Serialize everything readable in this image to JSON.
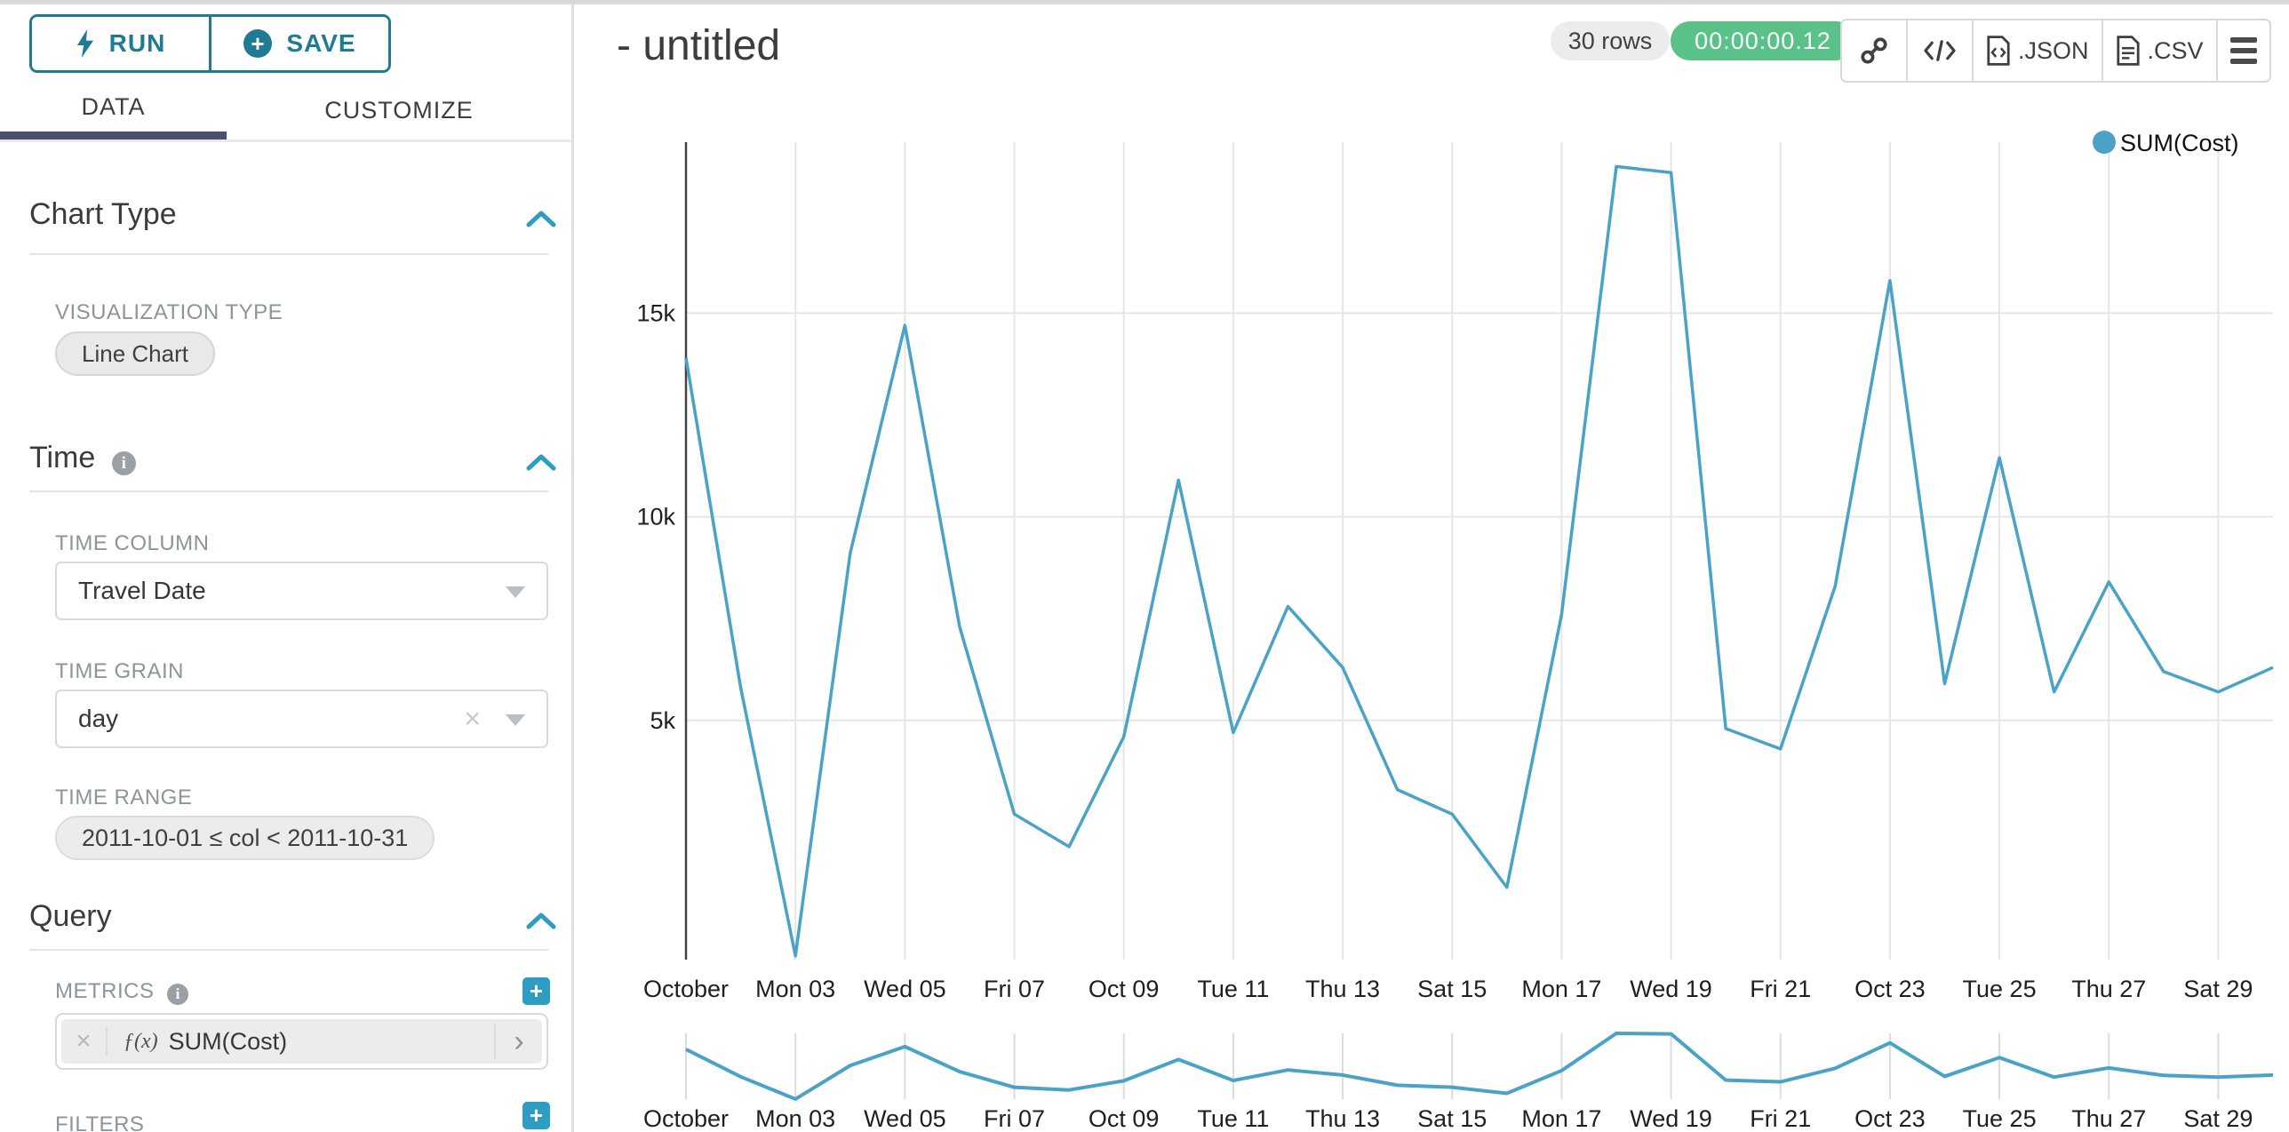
{
  "sidebar": {
    "run_label": "RUN",
    "save_label": "SAVE",
    "tabs": {
      "data": "DATA",
      "customize": "CUSTOMIZE"
    },
    "chart_type": {
      "title": "Chart Type",
      "viz_label": "VISUALIZATION TYPE",
      "viz_value": "Line Chart"
    },
    "time": {
      "title": "Time",
      "time_column_label": "TIME COLUMN",
      "time_column_value": "Travel Date",
      "time_grain_label": "TIME GRAIN",
      "time_grain_value": "day",
      "time_range_label": "TIME RANGE",
      "time_range_value": "2011-10-01 ≤ col < 2011-10-31"
    },
    "query": {
      "title": "Query",
      "metrics_label": "METRICS",
      "metric_fx": "ƒ(x)",
      "metric_name": "SUM(Cost)",
      "filters_label": "FILTERS"
    }
  },
  "header": {
    "title": "- untitled",
    "rows_badge": "30 rows",
    "timer_badge": "00:00:00.12",
    "export_json": ".JSON",
    "export_csv": ".CSV"
  },
  "colors": {
    "accent_teal": "#1f7a93",
    "line_teal": "#4aa3c6",
    "timer_green": "#5ac189",
    "tab_underline": "#4a5070",
    "gridline": "#e6e6e6",
    "axis_line": "#444444"
  },
  "chart_data": {
    "type": "line",
    "legend": "SUM(Cost)",
    "series": [
      {
        "name": "SUM(Cost)",
        "x": [
          "2011-10-01",
          "2011-10-02",
          "2011-10-03",
          "2011-10-04",
          "2011-10-05",
          "2011-10-06",
          "2011-10-07",
          "2011-10-08",
          "2011-10-09",
          "2011-10-10",
          "2011-10-11",
          "2011-10-12",
          "2011-10-13",
          "2011-10-14",
          "2011-10-15",
          "2011-10-16",
          "2011-10-17",
          "2011-10-18",
          "2011-10-19",
          "2011-10-20",
          "2011-10-21",
          "2011-10-22",
          "2011-10-23",
          "2011-10-24",
          "2011-10-25",
          "2011-10-26",
          "2011-10-27",
          "2011-10-28",
          "2011-10-29",
          "2011-10-30"
        ],
        "values": [
          13900,
          5800,
          -780,
          9100,
          14700,
          7300,
          2700,
          1900,
          4600,
          10900,
          4700,
          7800,
          6300,
          3300,
          2700,
          900,
          7600,
          18600,
          18450,
          4800,
          4300,
          8300,
          15800,
          5900,
          11450,
          5700,
          8400,
          6200,
          5700,
          6300
        ]
      }
    ],
    "x_tick_labels": [
      "October",
      "Mon 03",
      "Wed 05",
      "Fri 07",
      "Oct 09",
      "Tue 11",
      "Thu 13",
      "Sat 15",
      "Mon 17",
      "Wed 19",
      "Fri 21",
      "Oct 23",
      "Tue 25",
      "Thu 27",
      "Sat 29"
    ],
    "y_ticks": [
      {
        "label": "5k",
        "value": 5000
      },
      {
        "label": "10k",
        "value": 10000
      },
      {
        "label": "15k",
        "value": 15000
      }
    ],
    "ylim": [
      -800,
      19500
    ],
    "grid": true,
    "legend_position": "top-right",
    "has_range_brush_chart": true
  }
}
